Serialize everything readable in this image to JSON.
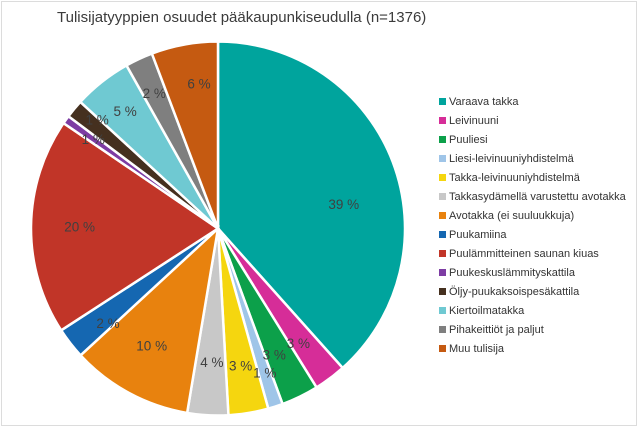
{
  "title": "Tulisijatyyppien osuudet pääkaupunkiseudulla (n=1376)",
  "chart_data": {
    "type": "pie",
    "title": "Tulisijatyyppien osuudet pääkaupunkiseudulla (n=1376)",
    "legend_position": "right",
    "label_format": "{value} %",
    "start_angle": 0,
    "direction": "clockwise",
    "slices": [
      {
        "label": "Varaava takka",
        "value": 39,
        "color": "#00A49D"
      },
      {
        "label": "Leivinuuni",
        "value": 3,
        "color": "#D62D98"
      },
      {
        "label": "Puuliesi",
        "value": 3,
        "color": "#0CA04A"
      },
      {
        "label": "Liesi-leivinuuniyhdistelmä",
        "value": 1,
        "color": "#9FC5E8"
      },
      {
        "label": "Takka-leivinuuniyhdistelmä",
        "value": 3,
        "color": "#F5D60F"
      },
      {
        "label": "Takkasydämellä varustettu avotakka",
        "value": 4,
        "color": "#C8C8C8"
      },
      {
        "label": "Avotakka (ei suuluukkuja)",
        "value": 10,
        "color": "#E8820E"
      },
      {
        "label": "Puukamiina",
        "value": 2,
        "color": "#1567B1"
      },
      {
        "label": "Puulämmitteinen saunan kiuas",
        "value": 20,
        "color": "#C13528"
      },
      {
        "label": "Puukeskuslämmityskattila",
        "value": 1,
        "color": "#7D3CA3"
      },
      {
        "label": "Öljy-puukaksoispesäkattila",
        "value": 1,
        "color": "#45301F"
      },
      {
        "label": "Kiertoilmatakka",
        "value": 5,
        "color": "#6FC9D2"
      },
      {
        "label": "Pihakeittiöt ja paljut",
        "value": 2,
        "color": "#7F7F7F"
      },
      {
        "label": "Muu tulisija",
        "value": 6,
        "color": "#C55A11"
      }
    ]
  }
}
